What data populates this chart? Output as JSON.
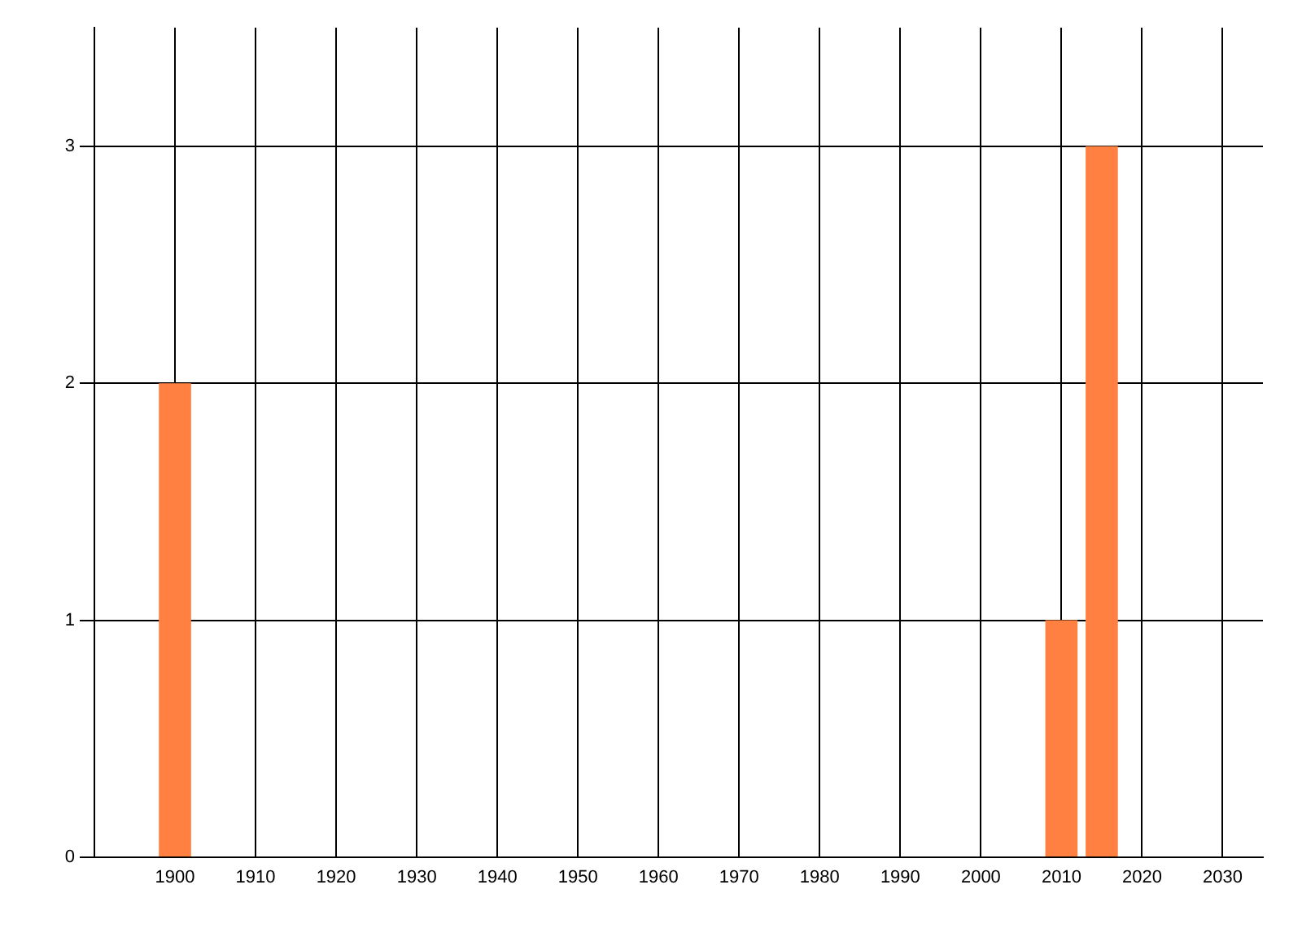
{
  "chart_data": {
    "type": "bar",
    "x": [
      1900,
      2010,
      2015
    ],
    "values": [
      2,
      1,
      3
    ],
    "color": "#ff8040",
    "xlim": [
      1890,
      2035
    ],
    "xticks": [
      1900,
      1910,
      1920,
      1930,
      1940,
      1950,
      1960,
      1970,
      1980,
      1990,
      2000,
      2010,
      2020,
      2030
    ],
    "ylim": [
      0,
      3.5
    ],
    "yticks": [
      0,
      1,
      2,
      3
    ],
    "grid": true
  }
}
